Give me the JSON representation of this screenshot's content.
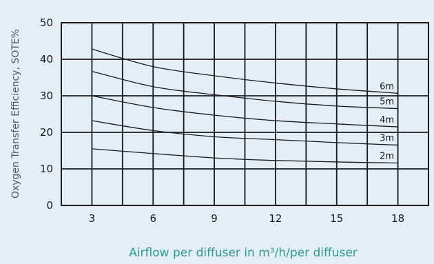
{
  "chart_data": {
    "type": "line",
    "ylabel": "Oxygen Transfer Efficiency, SOTE%",
    "xlabel": "Airflow per diffuser in m³/h/per diffuser",
    "x_ticks": [
      3,
      6,
      9,
      12,
      15,
      18
    ],
    "y_ticks": [
      0,
      10,
      20,
      30,
      40,
      50
    ],
    "xlim": [
      1.5,
      19.5
    ],
    "ylim": [
      0,
      50
    ],
    "grid": true,
    "colors": {
      "background": "#e3eef7",
      "line": "#1a1a1a",
      "xlabel": "#2e9b8f"
    },
    "series": [
      {
        "name": "2m",
        "x": [
          3,
          6,
          9,
          12,
          15,
          18
        ],
        "y": [
          15.5,
          14.2,
          13.0,
          12.3,
          11.9,
          11.6
        ]
      },
      {
        "name": "3m",
        "x": [
          3,
          6,
          9,
          12,
          15,
          18
        ],
        "y": [
          23.2,
          20.5,
          18.8,
          18.0,
          17.2,
          16.5
        ]
      },
      {
        "name": "4m",
        "x": [
          3,
          6,
          9,
          12,
          15,
          18
        ],
        "y": [
          30.0,
          26.8,
          24.7,
          23.2,
          22.3,
          21.5
        ]
      },
      {
        "name": "5m",
        "x": [
          3,
          6,
          9,
          12,
          15,
          18
        ],
        "y": [
          36.7,
          32.5,
          30.3,
          28.5,
          27.2,
          26.5
        ]
      },
      {
        "name": "6m",
        "x": [
          3,
          6,
          9,
          12,
          15,
          18
        ],
        "y": [
          42.8,
          38.0,
          35.5,
          33.5,
          31.9,
          30.7
        ]
      }
    ]
  }
}
